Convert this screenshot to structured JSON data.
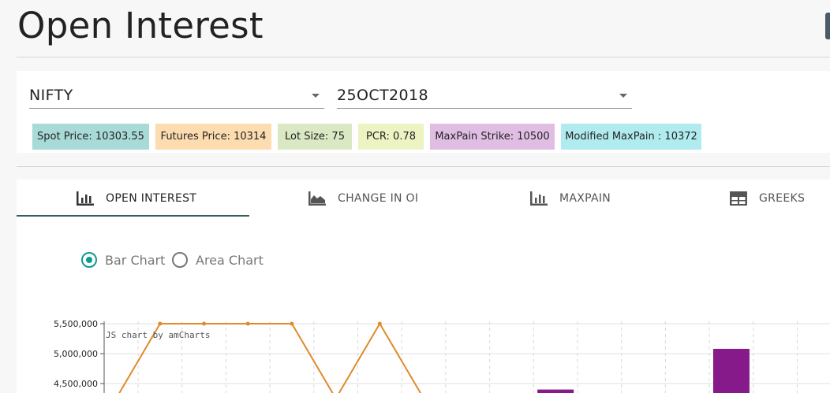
{
  "page": {
    "title": "Open Interest"
  },
  "filters": {
    "symbol": "NIFTY",
    "expiry": "25OCT2018"
  },
  "chips": [
    {
      "label": "Spot Price: 10303.55",
      "color": "#a8dbd8"
    },
    {
      "label": "Futures Price: 10314",
      "color": "#fddcb0"
    },
    {
      "label": "Lot Size: 75",
      "color": "#dbe8c4"
    },
    {
      "label": "PCR: 0.78",
      "color": "#eef3c3"
    },
    {
      "label": "MaxPain Strike: 10500",
      "color": "#e0bee4"
    },
    {
      "label": "Modified MaxPain : 10372",
      "color": "#b0ebef"
    }
  ],
  "tabs": [
    {
      "label": "OPEN INTEREST",
      "icon": "bar-chart-icon",
      "active": true
    },
    {
      "label": "CHANGE IN OI",
      "icon": "area-chart-icon",
      "active": false
    },
    {
      "label": "MAXPAIN",
      "icon": "bar-chart-icon",
      "active": false
    },
    {
      "label": "GREEKS",
      "icon": "table-icon",
      "active": false
    }
  ],
  "chart_type_options": [
    {
      "label": "Bar Chart",
      "selected": true
    },
    {
      "label": "Area Chart",
      "selected": false
    }
  ],
  "chart_credit": "JS chart by amCharts",
  "colors": {
    "accent": "#0f9a92",
    "line": "#e08a2a",
    "bar": "#861a8a"
  },
  "chart_data": {
    "type": "bar",
    "ylim_visible": [
      4300000,
      5500000
    ],
    "yticks": [
      "5,500,000",
      "5,000,000",
      "4,500,000"
    ],
    "ytick_values": [
      5500000,
      5000000,
      4500000
    ],
    "line_series": {
      "points": [
        {
          "slot": 0,
          "value": 4250000
        },
        {
          "slot": 1,
          "value": 5500000
        },
        {
          "slot": 2,
          "value": 5500000
        },
        {
          "slot": 3,
          "value": 5500000
        },
        {
          "slot": 4,
          "value": 5500000
        },
        {
          "slot": 5,
          "value": 4250000
        },
        {
          "slot": 6,
          "value": 5500000
        },
        {
          "slot": 7,
          "value": 4250000
        }
      ]
    },
    "bar_series": {
      "bars": [
        {
          "slot": 10,
          "value": 4400000
        },
        {
          "slot": 14,
          "value": 5080000
        }
      ]
    }
  }
}
